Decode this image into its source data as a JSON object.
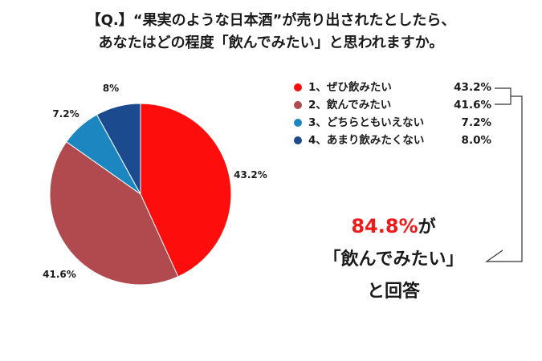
{
  "title": {
    "line1": "【Q.】“果実のような日本酒”が売り出されたとしたら、",
    "line2": "あなたはどの程度「飲んでみたい」と思われますか。"
  },
  "chart_data": {
    "type": "pie",
    "unit": "%",
    "series": [
      {
        "name": "1、ぜひ飲みたい",
        "value": 43.2,
        "value_text": "43.2%",
        "slice_label": "43.2%",
        "color": "#fe0d0d"
      },
      {
        "name": "2、飲んでみたい",
        "value": 41.6,
        "value_text": "41.6%",
        "slice_label": "41.6%",
        "color": "#b04a4f"
      },
      {
        "name": "3、どちらともいえない",
        "value": 7.2,
        "value_text": "7.2%",
        "slice_label": "7.2%",
        "color": "#1b86c0"
      },
      {
        "name": "4、あまり飲みたくない",
        "value": 8.0,
        "value_text": "8.0%",
        "slice_label": "8%",
        "color": "#1b4a8e"
      }
    ],
    "legend_position": "right"
  },
  "callout": {
    "pct": "84.8%",
    "ga": "が",
    "line2": "「飲んでみたい」",
    "line3": "と回答"
  },
  "colors": {
    "bracket": "#333333",
    "callout_accent": "#ee1b1b"
  }
}
